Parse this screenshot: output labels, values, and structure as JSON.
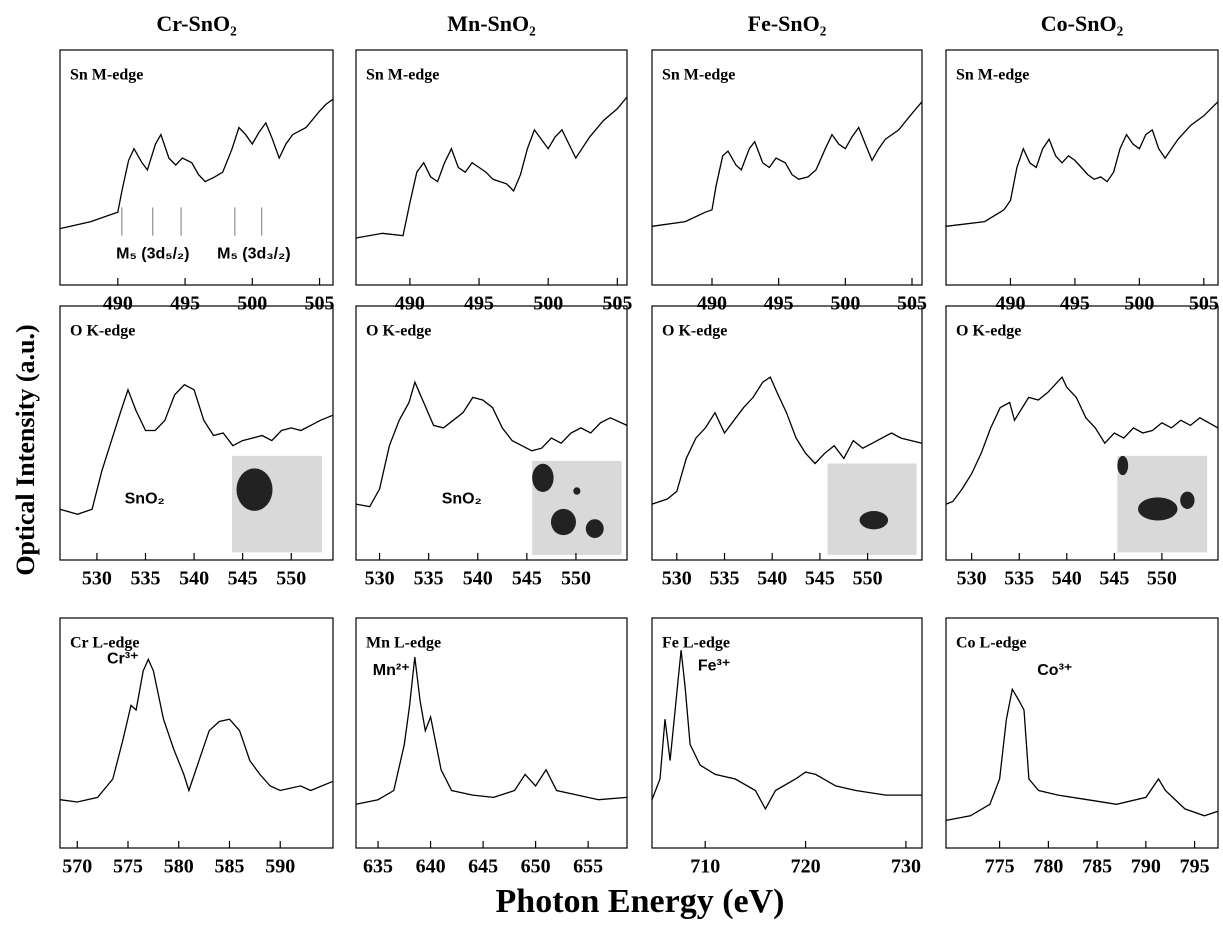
{
  "figure": {
    "column_titles": [
      "Cr-SnO₂",
      "Mn-SnO₂",
      "Fe-SnO₂",
      "Co-SnO₂"
    ],
    "ylabel": "Optical Intensity (a.u.)",
    "xlabel": "Photon Energy (eV)"
  },
  "chart_data": [
    {
      "type": "line",
      "label": "Sn M-edge",
      "annotations": [
        "M₅ (3d₅/₂)",
        "M₅ (3d₃/₂)"
      ],
      "markers": [
        490.3,
        492.6,
        494.7,
        498.7,
        500.7
      ],
      "color": "#000000",
      "x": [
        485.7,
        488,
        489.5,
        490,
        490.3,
        490.8,
        491.2,
        491.8,
        492.2,
        492.8,
        493.2,
        493.8,
        494.3,
        494.8,
        495.5,
        496,
        496.5,
        497.2,
        497.8,
        498.5,
        499,
        499.5,
        500,
        500.5,
        501,
        501.5,
        502,
        502.5,
        503,
        504,
        505,
        505.5,
        506
      ],
      "values": [
        24,
        27,
        30,
        31,
        40,
        53,
        58,
        52,
        49,
        60,
        64,
        54,
        51,
        54,
        52,
        47,
        44,
        46,
        48,
        58,
        67,
        64,
        60,
        65,
        69,
        62,
        54,
        60,
        64,
        67,
        74,
        77,
        79
      ],
      "xlim": [
        485.7,
        506
      ],
      "xticks": [
        490,
        495,
        500,
        505
      ],
      "ylim": [
        0,
        100
      ]
    },
    {
      "type": "line",
      "label": "Sn M-edge",
      "color": "#000000",
      "x": [
        486.1,
        488,
        489.5,
        490,
        490.5,
        491,
        491.5,
        492,
        492.5,
        493,
        493.5,
        494,
        494.5,
        495,
        495.5,
        496,
        497,
        497.5,
        498,
        498.5,
        499,
        499.5,
        500,
        500.5,
        501,
        501.5,
        502,
        503,
        504,
        505,
        505.7
      ],
      "values": [
        20,
        22,
        21,
        35,
        48,
        52,
        46,
        44,
        52,
        58,
        50,
        48,
        52,
        50,
        48,
        45,
        43,
        40,
        47,
        58,
        66,
        62,
        58,
        63,
        66,
        60,
        54,
        63,
        70,
        75,
        80
      ],
      "xlim": [
        486.1,
        505.7
      ],
      "xticks": [
        490,
        495,
        500,
        505
      ],
      "ylim": [
        0,
        100
      ]
    },
    {
      "type": "line",
      "label": "Sn M-edge",
      "color": "#000000",
      "x": [
        485.5,
        488,
        489.5,
        490,
        490.3,
        490.8,
        491.2,
        491.8,
        492.2,
        492.8,
        493.2,
        493.8,
        494.3,
        494.8,
        495.5,
        496,
        496.5,
        497.2,
        497.8,
        498.5,
        499,
        499.5,
        500,
        500.5,
        501,
        501.5,
        502,
        502.5,
        503,
        504,
        505,
        505.75
      ],
      "values": [
        25,
        27,
        31,
        32,
        42,
        55,
        57,
        51,
        49,
        58,
        61,
        52,
        50,
        54,
        52,
        47,
        45,
        46,
        49,
        58,
        64,
        60,
        58,
        63,
        67,
        60,
        53,
        58,
        62,
        66,
        73,
        78
      ],
      "xlim": [
        485.5,
        505.75
      ],
      "xticks": [
        490,
        495,
        500,
        505
      ],
      "ylim": [
        0,
        100
      ]
    },
    {
      "type": "line",
      "label": "Sn M-edge",
      "color": "#000000",
      "x": [
        485,
        488,
        489.5,
        490,
        490.5,
        491,
        491.5,
        492,
        492.5,
        493,
        493.5,
        494,
        494.5,
        495,
        495.5,
        496,
        496.5,
        497,
        497.5,
        498,
        498.5,
        499,
        499.5,
        500,
        500.5,
        501,
        501.5,
        502,
        503,
        504,
        505,
        506.1
      ],
      "values": [
        25,
        27,
        32,
        36,
        50,
        58,
        52,
        50,
        58,
        62,
        55,
        52,
        55,
        53,
        50,
        47,
        45,
        46,
        44,
        48,
        58,
        64,
        60,
        58,
        64,
        66,
        58,
        54,
        62,
        68,
        72,
        78
      ],
      "xlim": [
        485,
        506.1
      ],
      "xticks": [
        490,
        495,
        500,
        505
      ],
      "ylim": [
        0,
        100
      ]
    },
    {
      "type": "line",
      "label": "O K-edge",
      "annotations": [
        "SnO₂"
      ],
      "color": "#000000",
      "x": [
        526.2,
        528,
        529.5,
        530.5,
        531.5,
        532.5,
        533.2,
        534,
        535,
        536,
        537,
        538,
        539,
        540,
        541,
        542,
        543,
        544,
        545,
        546,
        547,
        548,
        549,
        550,
        551,
        552,
        553,
        554.3
      ],
      "values": [
        20,
        18,
        20,
        35,
        47,
        59,
        67,
        59,
        51,
        51,
        55,
        65,
        69,
        67,
        55,
        49,
        50,
        45,
        47,
        48,
        49,
        47,
        51,
        52,
        51,
        53,
        55,
        57
      ],
      "xlim": [
        526.2,
        554.3
      ],
      "xticks": [
        530,
        535,
        540,
        545,
        550
      ],
      "ylim": [
        0,
        100
      ]
    },
    {
      "type": "line",
      "label": "O K-edge",
      "annotations": [
        "SnO₂"
      ],
      "color": "#000000",
      "x": [
        527.6,
        529,
        530,
        531,
        532,
        533,
        533.6,
        534.5,
        535.5,
        536.5,
        537.5,
        538.5,
        539.5,
        540.5,
        541.5,
        542.5,
        543.5,
        544.5,
        545.5,
        546.5,
        547.5,
        548.5,
        549.5,
        550.5,
        551.5,
        552.5,
        553.5,
        555.2
      ],
      "values": [
        22,
        21,
        28,
        45,
        55,
        62,
        70,
        62,
        53,
        52,
        55,
        58,
        64,
        63,
        60,
        52,
        47,
        45,
        43,
        44,
        48,
        46,
        50,
        52,
        50,
        54,
        56,
        53
      ],
      "xlim": [
        527.6,
        555.2
      ],
      "xticks": [
        530,
        535,
        540,
        545,
        550
      ],
      "ylim": [
        0,
        100
      ]
    },
    {
      "type": "line",
      "label": "O K-edge",
      "color": "#000000",
      "x": [
        527.4,
        529,
        530,
        531,
        532,
        533,
        534,
        535,
        536,
        537,
        538,
        539,
        539.8,
        540.5,
        541.5,
        542.5,
        543.5,
        544.5,
        545.5,
        546.5,
        547.5,
        548.5,
        549.5,
        550.5,
        551.5,
        552.5,
        553.5,
        555.7
      ],
      "values": [
        22,
        24,
        27,
        40,
        48,
        52,
        58,
        50,
        55,
        60,
        64,
        70,
        72,
        66,
        58,
        48,
        42,
        38,
        42,
        45,
        40,
        47,
        44,
        46,
        48,
        50,
        48,
        46
      ],
      "xlim": [
        527.4,
        555.7
      ],
      "xticks": [
        530,
        535,
        540,
        545,
        550
      ],
      "ylim": [
        0,
        100
      ]
    },
    {
      "type": "line",
      "label": "O K-edge",
      "color": "#000000",
      "x": [
        527.3,
        528,
        529,
        530,
        530.5,
        531,
        532,
        533,
        534,
        534.5,
        535,
        536,
        537,
        538,
        539,
        539.5,
        540,
        541,
        542,
        543,
        544,
        545,
        546,
        547,
        548,
        549,
        550,
        551,
        552,
        553,
        554,
        555.9
      ],
      "values": [
        22,
        23,
        28,
        34,
        38,
        42,
        52,
        60,
        62,
        55,
        58,
        64,
        63,
        66,
        70,
        72,
        68,
        64,
        56,
        52,
        46,
        50,
        48,
        52,
        50,
        51,
        54,
        52,
        55,
        53,
        56,
        52
      ],
      "xlim": [
        527.3,
        555.9
      ],
      "xticks": [
        530,
        535,
        540,
        545,
        550
      ],
      "ylim": [
        0,
        100
      ]
    },
    {
      "type": "line",
      "label": "Cr L-edge",
      "annotations": [
        "Cr³⁺"
      ],
      "color": "#000000",
      "x": [
        568.3,
        570,
        572,
        573.5,
        574.5,
        575.3,
        575.8,
        576.5,
        577,
        577.5,
        578.5,
        579.5,
        580.5,
        581,
        582,
        583,
        584,
        585,
        586,
        587,
        588,
        589,
        590,
        592,
        593,
        595.2
      ],
      "values": [
        21,
        20,
        22,
        30,
        47,
        62,
        60,
        77,
        82,
        77,
        56,
        43,
        32,
        25,
        38,
        51,
        55,
        56,
        51,
        38,
        32,
        27,
        25,
        27,
        25,
        29
      ],
      "xlim": [
        568.3,
        595.2
      ],
      "xticks": [
        570,
        575,
        580,
        585,
        590
      ],
      "ylim": [
        0,
        100
      ]
    },
    {
      "type": "line",
      "label": "Mn L-edge",
      "annotations": [
        "Mn²⁺"
      ],
      "color": "#000000",
      "x": [
        632.9,
        635,
        636.5,
        637.5,
        638,
        638.5,
        639,
        639.5,
        640,
        641,
        642,
        644,
        646,
        648,
        649,
        650,
        651,
        652,
        654,
        656,
        658.7
      ],
      "values": [
        19,
        21,
        25,
        45,
        62,
        83,
        64,
        51,
        57,
        34,
        25,
        23,
        22,
        25,
        32,
        27,
        34,
        25,
        23,
        21,
        22
      ],
      "xlim": [
        632.9,
        658.7
      ],
      "xticks": [
        635,
        640,
        645,
        650,
        655
      ],
      "ylim": [
        0,
        100
      ]
    },
    {
      "type": "line",
      "label": "Fe L-edge",
      "annotations": [
        "Fe³⁺"
      ],
      "color": "#000000",
      "x": [
        704.7,
        705.5,
        706,
        706.5,
        707.3,
        707.6,
        708,
        708.5,
        709.5,
        711,
        713,
        715,
        716,
        717,
        719,
        720,
        721,
        723,
        725,
        728,
        731.6
      ],
      "values": [
        21,
        30,
        56,
        38,
        73,
        86,
        70,
        45,
        36,
        32,
        30,
        25,
        17,
        25,
        30,
        33,
        32,
        27,
        25,
        23,
        23
      ],
      "xlim": [
        704.7,
        731.6
      ],
      "xticks": [
        710,
        720,
        730
      ],
      "ylim": [
        0,
        100
      ]
    },
    {
      "type": "line",
      "label": "Co L-edge",
      "annotations": [
        "Co³⁺"
      ],
      "color": "#000000",
      "x": [
        769.5,
        772,
        774,
        775,
        775.7,
        776.3,
        777,
        777.5,
        778,
        779,
        781,
        784,
        787,
        790,
        791.3,
        792,
        794,
        796,
        797.4
      ],
      "values": [
        12,
        14,
        19,
        30,
        56,
        69,
        64,
        60,
        30,
        25,
        23,
        21,
        19,
        22,
        30,
        25,
        17,
        14,
        16
      ],
      "xlim": [
        769.5,
        797.4
      ],
      "xticks": [
        775,
        780,
        785,
        790,
        795
      ],
      "ylim": [
        0,
        100
      ]
    }
  ]
}
